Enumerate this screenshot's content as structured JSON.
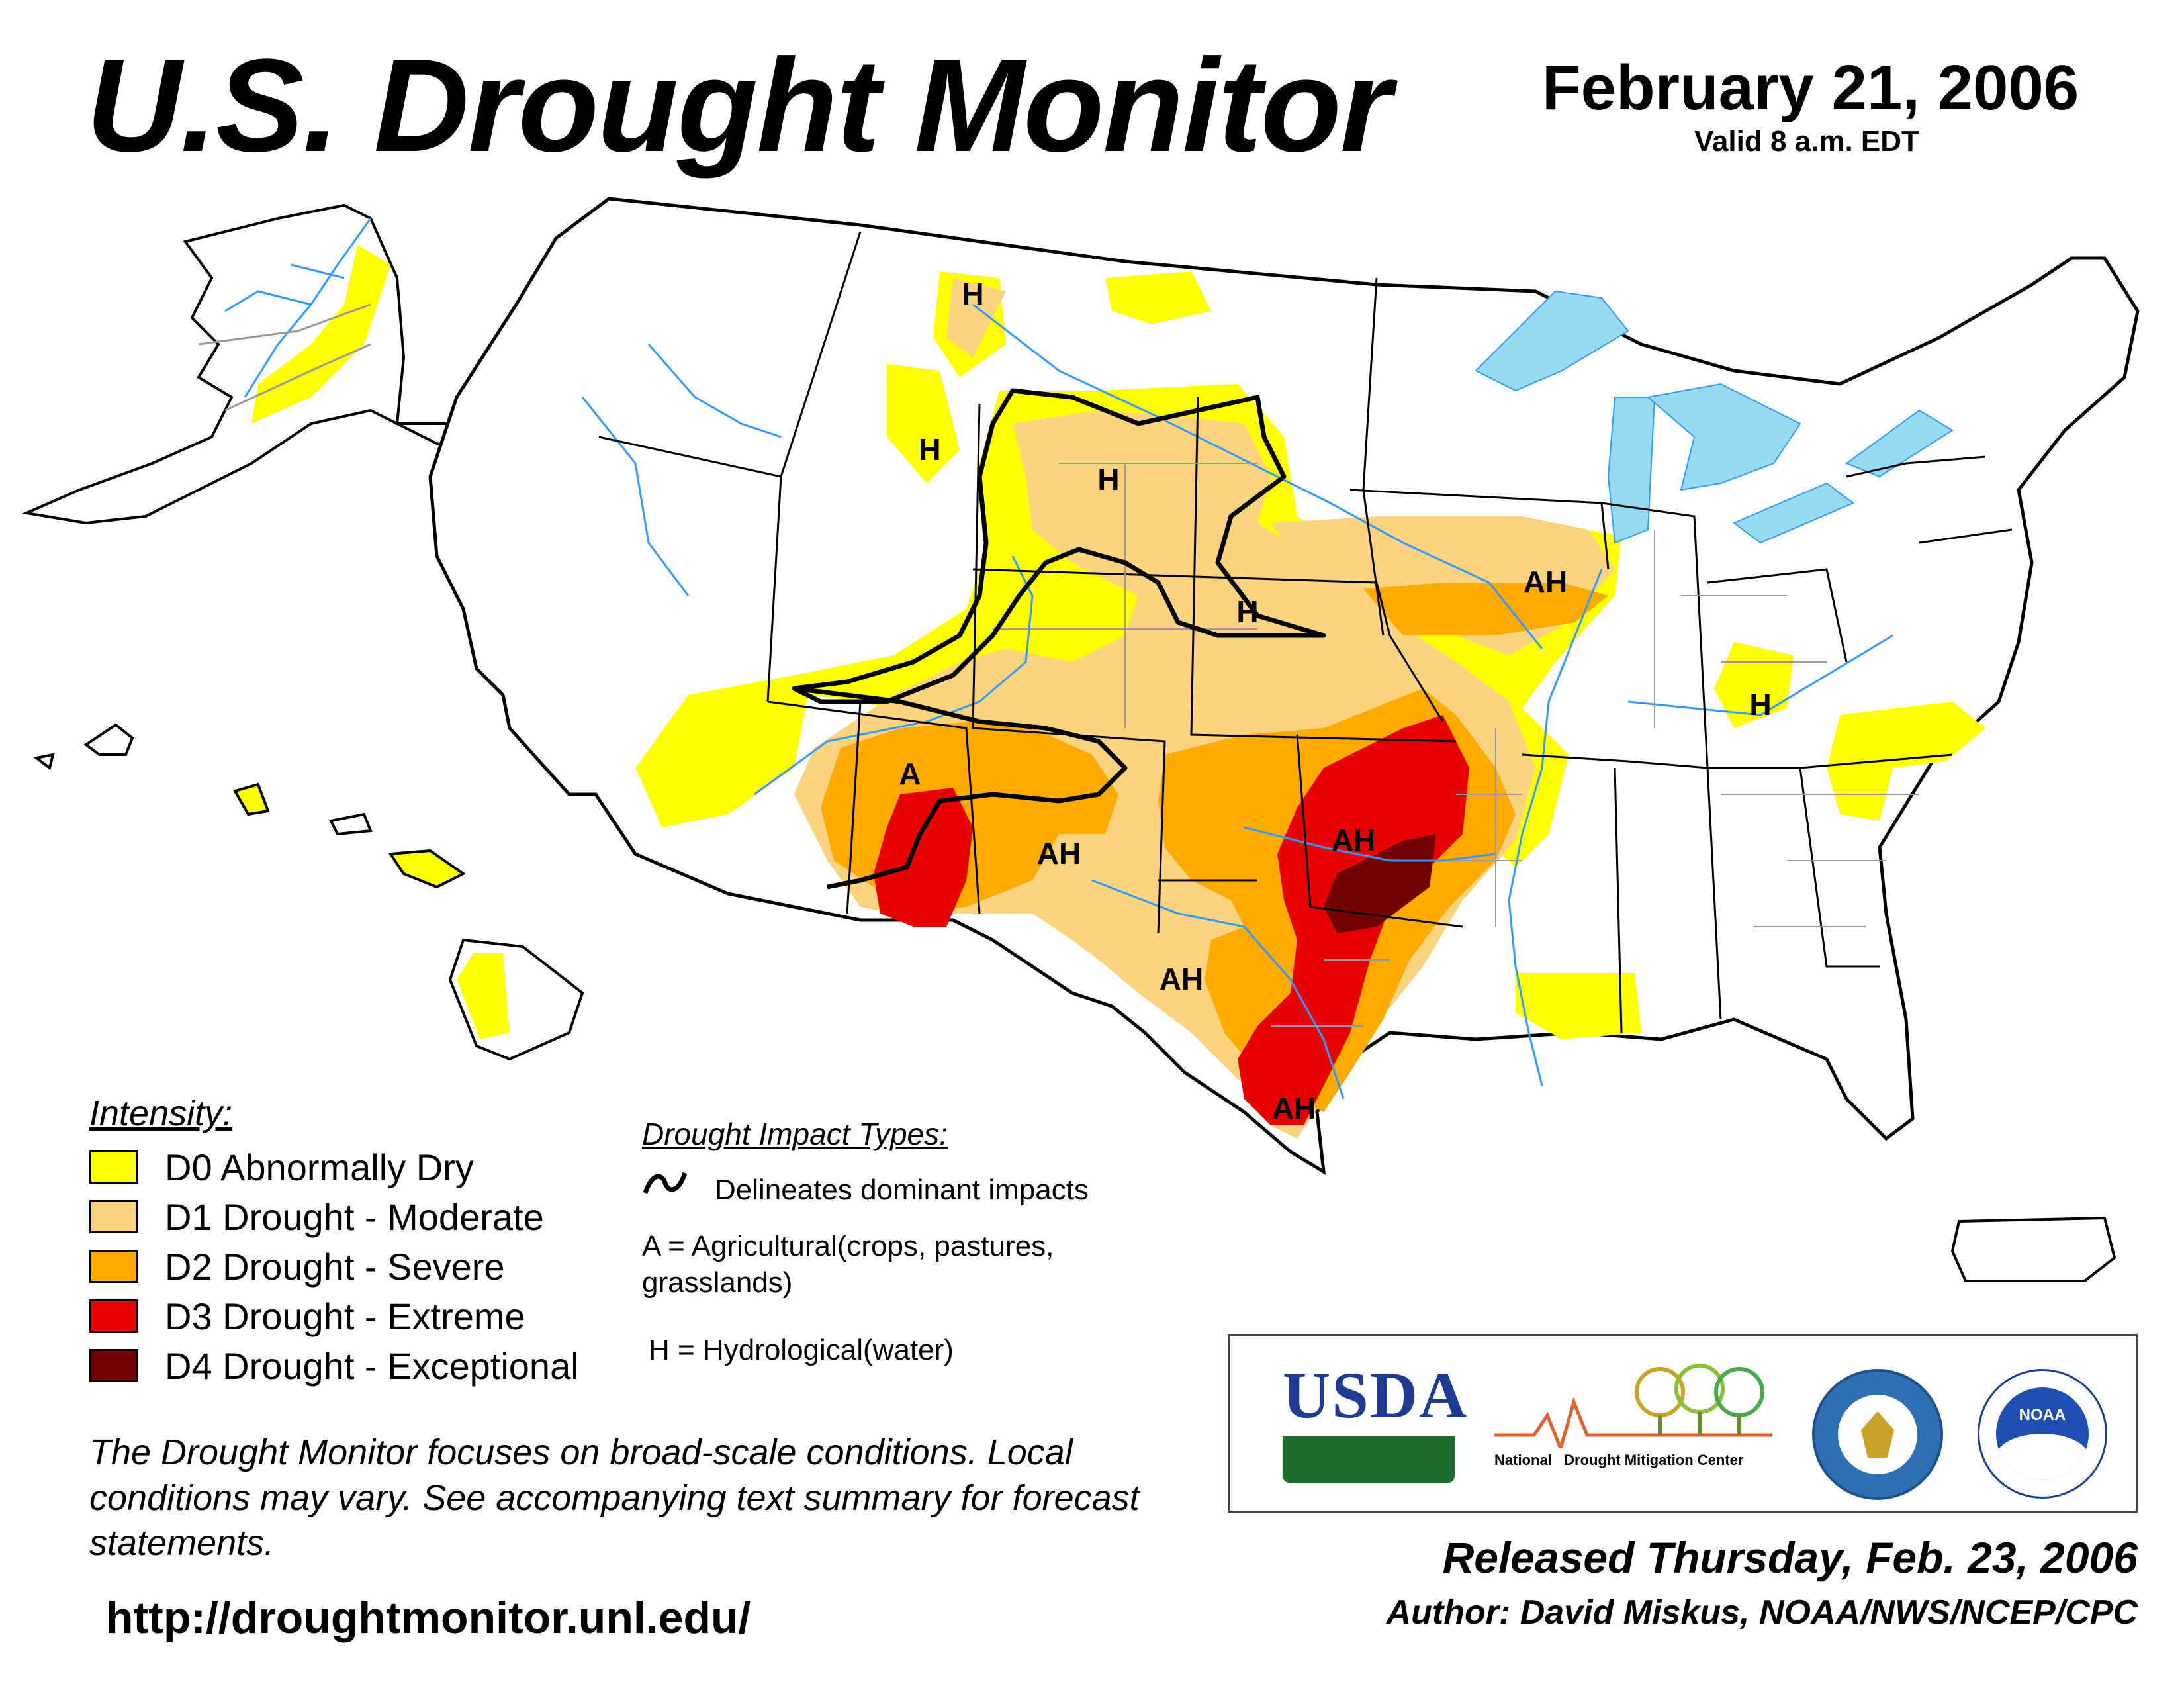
{
  "header": {
    "title": "U.S. Drought Monitor",
    "date": "February 21, 2006",
    "valid": "Valid 8 a.m. EDT"
  },
  "legend": {
    "title": "Intensity:",
    "items": [
      {
        "label": "D0 Abnormally Dry",
        "color": "#FFFF00"
      },
      {
        "label": "D1 Drought - Moderate",
        "color": "#FCD37F"
      },
      {
        "label": "D2 Drought - Severe",
        "color": "#FFAA00"
      },
      {
        "label": "D3 Drought - Extreme",
        "color": "#E60000"
      },
      {
        "label": "D4 Drought - Exceptional",
        "color": "#730000"
      }
    ]
  },
  "impacts": {
    "title": "Drought Impact Types:",
    "delineates": "Delineates dominant impacts",
    "agricultural_1": "A = Agricultural(crops, pastures,",
    "agricultural_2": "grasslands)",
    "hydrological": "H = Hydrological(water)"
  },
  "map_labels": [
    "H",
    "H",
    "H",
    "H",
    "AH",
    "H",
    "A",
    "AH",
    "AH",
    "AH",
    "AH"
  ],
  "note": "The Drought Monitor focuses on broad-scale conditions. Local conditions may vary. See accompanying text summary for forecast statements.",
  "url": "http://droughtmonitor.unl.edu/",
  "logos": {
    "usda": "USDA",
    "ndmc_1": "National",
    "ndmc_2": "Drought Mitigation Center",
    "noaa": "NOAA"
  },
  "footer": {
    "released": "Released Thursday, Feb. 23, 2006",
    "author": "Author: David Miskus, NOAA/NWS/NCEP/CPC"
  },
  "colors": {
    "water": "#97DBF2",
    "rivers": "#3399FF",
    "boundaries": "#999999"
  }
}
